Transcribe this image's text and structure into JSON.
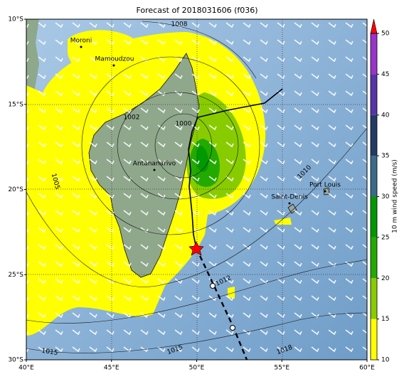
{
  "title": "Forecast of 2018031606 (f036)",
  "lon_ticks": [
    {
      "value": 40,
      "label": "40°E"
    },
    {
      "value": 45,
      "label": "45°E"
    },
    {
      "value": 50,
      "label": "50°E"
    },
    {
      "value": 55,
      "label": "55°E"
    },
    {
      "value": 60,
      "label": "60°E"
    }
  ],
  "lat_ticks": [
    {
      "value": -10,
      "label": "10°S"
    },
    {
      "value": -15,
      "label": "15°S"
    },
    {
      "value": -20,
      "label": "20°S"
    },
    {
      "value": -25,
      "label": "25°S"
    },
    {
      "value": -30,
      "label": "30°S"
    }
  ],
  "places": [
    "Moroni",
    "Mamoudzou",
    "Antananarivo",
    "Saint-Denis",
    "Port Louis"
  ],
  "isobar_labels": [
    "1008",
    "1002",
    "1000",
    "1005",
    "1010",
    "1012",
    "1015",
    "1015",
    "1018"
  ],
  "colorbar": {
    "label": "10 m wind speed (m/s)",
    "ticks": [
      10,
      15,
      20,
      25,
      30,
      35,
      40,
      45,
      50
    ],
    "colors": [
      "#ffff00",
      "#88cc00",
      "#22aa00",
      "#009900",
      "#3a6a8a",
      "#223a66",
      "#5533aa",
      "#9933cc"
    ]
  }
}
